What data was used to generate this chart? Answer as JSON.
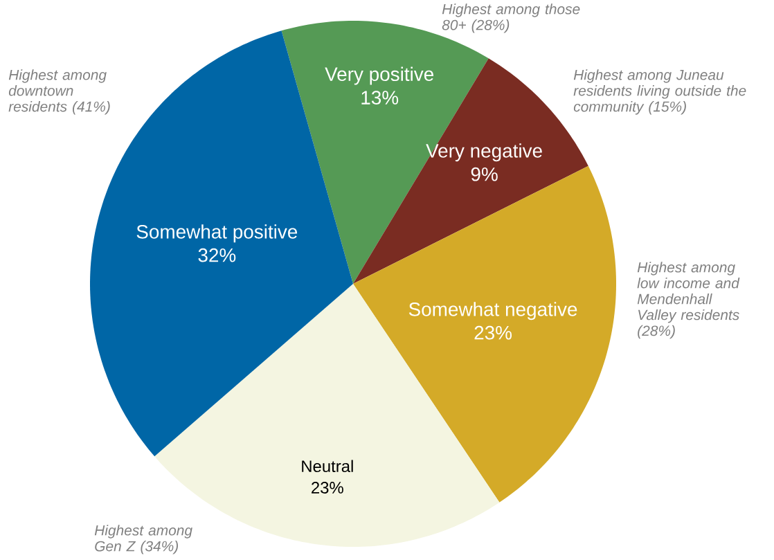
{
  "chart_data": {
    "type": "pie",
    "categories": [
      "Very positive",
      "Very negative",
      "Somewhat negative",
      "Neutral",
      "Somewhat positive"
    ],
    "values": [
      13,
      9,
      23,
      23,
      32
    ],
    "value_labels": [
      "13%",
      "9%",
      "23%",
      "23%",
      "32%"
    ],
    "colors": [
      "#559a55",
      "#7a2c22",
      "#d4aa28",
      "#f4f5e1",
      "#0066a6"
    ],
    "annotations": [
      "Highest among downtown residents (41%)",
      "Highest among those 80+ (28%)",
      "Highest among Juneau residents living outside the community (15%)",
      "Highest among low income and Mendenhall Valley residents (28%)",
      "Highest among Gen Z (34%)"
    ]
  }
}
